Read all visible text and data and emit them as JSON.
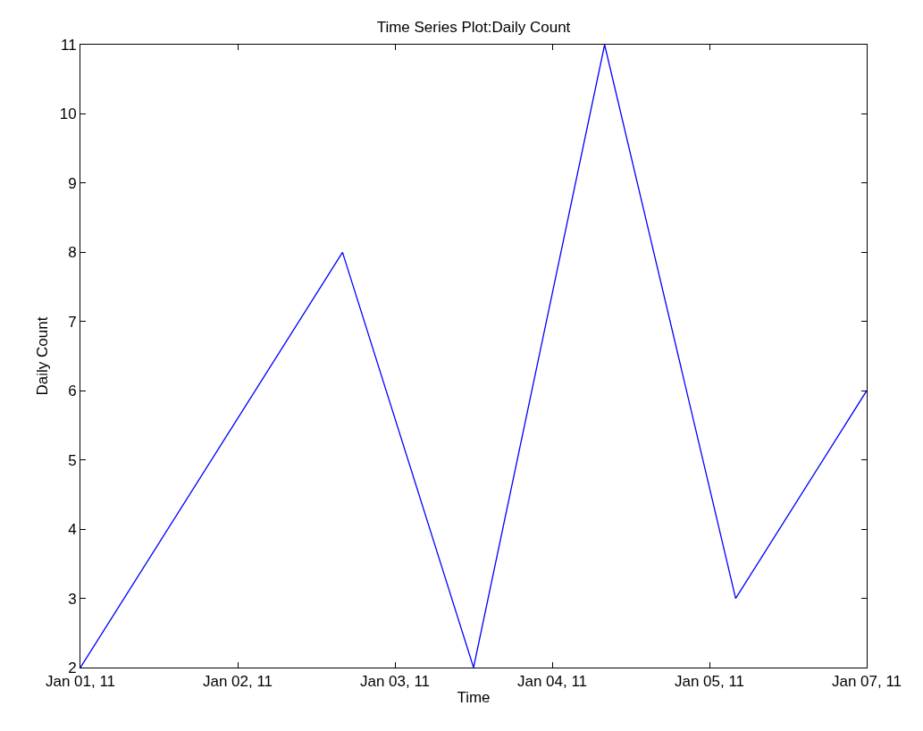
{
  "chart_data": {
    "type": "line",
    "title": "Time Series Plot:Daily Count",
    "xlabel": "Time",
    "ylabel": "Daily Count",
    "x": [
      "--01-01",
      "--01-02T16:00",
      "--01-03T12:00",
      "--01-04T08:00",
      "--01-05T04:00",
      "--01-06"
    ],
    "series": [
      {
        "color": "#0000ff",
        "values": [
          2,
          8,
          2,
          11,
          3,
          6
        ]
      }
    ],
    "xlim": [
      "--01-01",
      "--01-06"
    ],
    "xticks": [
      {
        "value": "--01-01",
        "label": "Jan 01, 11"
      },
      {
        "value": "--01-02",
        "label": "Jan 02, 11"
      },
      {
        "value": "--01-03",
        "label": "Jan 03, 11"
      },
      {
        "value": "--01-04",
        "label": "Jan 04, 11"
      },
      {
        "value": "--01-05",
        "label": "Jan 05, 11"
      },
      {
        "value": "--01-06",
        "label": "Jan 07, 11"
      }
    ],
    "ylim": [
      2,
      11
    ],
    "yticks": [
      2,
      3,
      4,
      5,
      6,
      7,
      8,
      9,
      10,
      11
    ],
    "marker": "none",
    "line_style": "solid"
  }
}
